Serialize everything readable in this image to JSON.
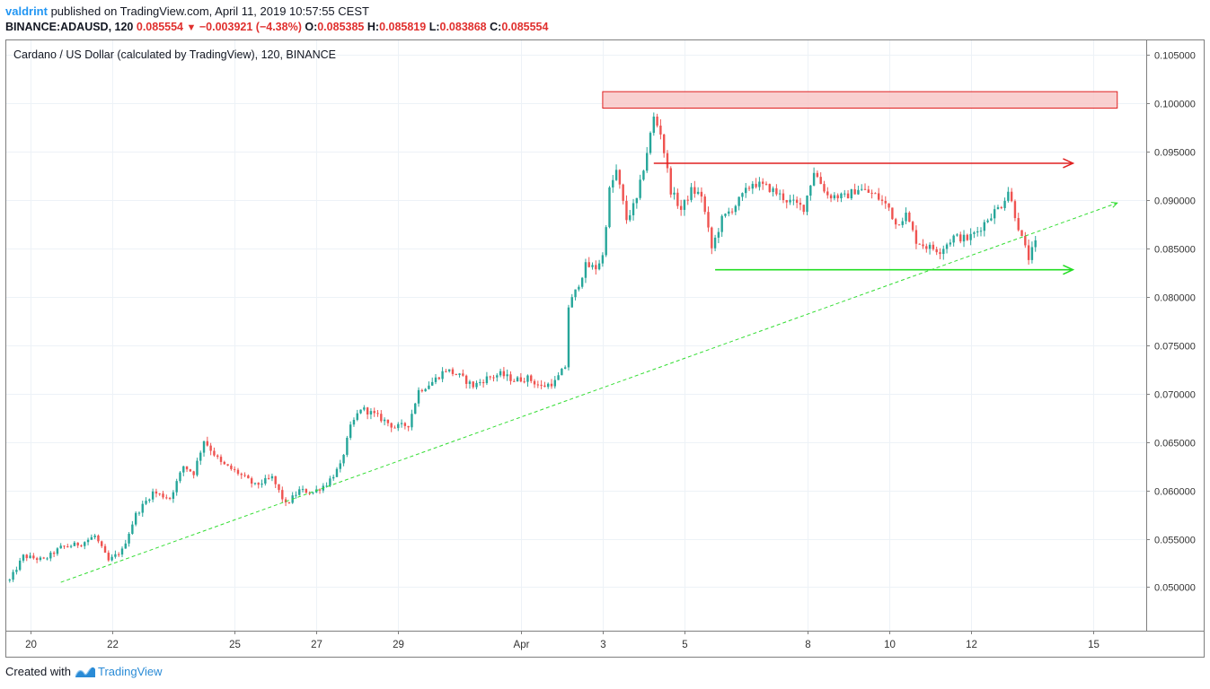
{
  "header": {
    "user": "valdrint",
    "published_text": " published on TradingView.com, April 11, 2019 10:57:55 CEST",
    "symbol": "BINANCE:ADAUSD, 120",
    "last": "0.085554",
    "change": "−0.003921 (−4.38%)",
    "o_label": "O:",
    "o": "0.085385",
    "h_label": "H:",
    "h": "0.085819",
    "l_label": "L:",
    "l": "0.083868",
    "c_label": "C:",
    "c": "0.085554"
  },
  "footer": {
    "created_with": "Created with",
    "brand": "TradingView"
  },
  "colors": {
    "up": "#26a69a",
    "down": "#ef5350",
    "grid": "#edf2f7",
    "resistance_zone": "#f8c8c8",
    "resistance_arrow": "#e02020",
    "support_arrow": "#22dd22",
    "trendline": "#33dd33"
  },
  "chart_data": {
    "type": "candlestick",
    "title": "Cardano / US Dollar (calculated by TradingView), 120, BINANCE",
    "y_ticks": [
      "0.105000",
      "0.100000",
      "0.095000",
      "0.090000",
      "0.085000",
      "0.080000",
      "0.075000",
      "0.070000",
      "0.065000",
      "0.060000",
      "0.055000",
      "0.050000"
    ],
    "ylim": [
      0.0455,
      0.1065
    ],
    "x_ticks": [
      "20",
      "22",
      "25",
      "27",
      "29",
      "Apr",
      "3",
      "5",
      "8",
      "10",
      "12",
      "15"
    ],
    "x_tick_dates": [
      "2019-03-20",
      "2019-03-22",
      "2019-03-25",
      "2019-03-27",
      "2019-03-29",
      "2019-04-01",
      "2019-04-03",
      "2019-04-05",
      "2019-04-08",
      "2019-04-10",
      "2019-04-12",
      "2019-04-15"
    ],
    "xlim": [
      "2019-03-19T10:00",
      "2019-04-16T07:00"
    ],
    "grid": true,
    "price_path": [
      [
        "2019-03-19T12:00",
        0.0507
      ],
      [
        "2019-03-19T20:00",
        0.0532
      ],
      [
        "2019-03-20T08:00",
        0.0528
      ],
      [
        "2019-03-20T18:00",
        0.0541
      ],
      [
        "2019-03-21T06:00",
        0.0545
      ],
      [
        "2019-03-21T14:00",
        0.0553
      ],
      [
        "2019-03-21T22:00",
        0.0527
      ],
      [
        "2019-03-22T06:00",
        0.0538
      ],
      [
        "2019-03-22T14:00",
        0.0575
      ],
      [
        "2019-03-23T00:00",
        0.0598
      ],
      [
        "2019-03-23T10:00",
        0.0592
      ],
      [
        "2019-03-23T18:00",
        0.0625
      ],
      [
        "2019-03-24T00:00",
        0.0618
      ],
      [
        "2019-03-24T06:00",
        0.0652
      ],
      [
        "2019-03-24T16:00",
        0.0628
      ],
      [
        "2019-03-25T02:00",
        0.0618
      ],
      [
        "2019-03-25T12:00",
        0.0605
      ],
      [
        "2019-03-25T22:00",
        0.0613
      ],
      [
        "2019-03-26T06:00",
        0.0585
      ],
      [
        "2019-03-26T14:00",
        0.06
      ],
      [
        "2019-03-26T22:00",
        0.0598
      ],
      [
        "2019-03-27T06:00",
        0.0607
      ],
      [
        "2019-03-27T14:00",
        0.0625
      ],
      [
        "2019-03-27T20:00",
        0.0665
      ],
      [
        "2019-03-28T02:00",
        0.0685
      ],
      [
        "2019-03-28T08:00",
        0.068
      ],
      [
        "2019-03-28T16:00",
        0.0672
      ],
      [
        "2019-03-28T22:00",
        0.0665
      ],
      [
        "2019-03-29T06:00",
        0.0668
      ],
      [
        "2019-03-29T12:00",
        0.0703
      ],
      [
        "2019-03-29T20:00",
        0.0712
      ],
      [
        "2019-03-30T04:00",
        0.0725
      ],
      [
        "2019-03-30T12:00",
        0.0718
      ],
      [
        "2019-03-30T20:00",
        0.0708
      ],
      [
        "2019-03-31T04:00",
        0.0716
      ],
      [
        "2019-03-31T12:00",
        0.072
      ],
      [
        "2019-03-31T20:00",
        0.0714
      ],
      [
        "2019-04-01T04:00",
        0.0716
      ],
      [
        "2019-04-01T12:00",
        0.0707
      ],
      [
        "2019-04-01T20:00",
        0.0712
      ],
      [
        "2019-04-02T02:00",
        0.0728
      ],
      [
        "2019-04-02T04:00",
        0.079
      ],
      [
        "2019-04-02T08:00",
        0.0805
      ],
      [
        "2019-04-02T14:00",
        0.0832
      ],
      [
        "2019-04-02T20:00",
        0.083
      ],
      [
        "2019-04-03T00:00",
        0.0842
      ],
      [
        "2019-04-03T04:00",
        0.091
      ],
      [
        "2019-04-03T08:00",
        0.093
      ],
      [
        "2019-04-03T14:00",
        0.088
      ],
      [
        "2019-04-03T20:00",
        0.09
      ],
      [
        "2019-04-04T02:00",
        0.095
      ],
      [
        "2019-04-04T06:00",
        0.0985
      ],
      [
        "2019-04-04T10:00",
        0.097
      ],
      [
        "2019-04-04T16:00",
        0.091
      ],
      [
        "2019-04-04T22:00",
        0.089
      ],
      [
        "2019-04-05T04:00",
        0.091
      ],
      [
        "2019-04-05T10:00",
        0.0905
      ],
      [
        "2019-04-05T16:00",
        0.085
      ],
      [
        "2019-04-05T22:00",
        0.088
      ],
      [
        "2019-04-06T06:00",
        0.0895
      ],
      [
        "2019-04-06T16:00",
        0.0918
      ],
      [
        "2019-04-07T02:00",
        0.0912
      ],
      [
        "2019-04-07T12:00",
        0.09
      ],
      [
        "2019-04-07T22:00",
        0.0892
      ],
      [
        "2019-04-08T04:00",
        0.093
      ],
      [
        "2019-04-08T12:00",
        0.0905
      ],
      [
        "2019-04-08T22:00",
        0.0903
      ],
      [
        "2019-04-09T06:00",
        0.0912
      ],
      [
        "2019-04-09T16:00",
        0.0905
      ],
      [
        "2019-04-10T00:00",
        0.0892
      ],
      [
        "2019-04-10T04:00",
        0.0875
      ],
      [
        "2019-04-10T10:00",
        0.0885
      ],
      [
        "2019-04-10T16:00",
        0.0858
      ],
      [
        "2019-04-10T22:00",
        0.0852
      ],
      [
        "2019-04-11T06:00",
        0.0848
      ],
      [
        "2019-04-11T14:00",
        0.0862
      ],
      [
        "2019-04-11T22:00",
        0.086
      ],
      [
        "2019-04-12T04:00",
        0.0868
      ],
      [
        "2019-04-12T12:00",
        0.0885
      ],
      [
        "2019-04-12T18:00",
        0.0895
      ],
      [
        "2019-04-12T22:00",
        0.091
      ],
      [
        "2019-04-13T02:00",
        0.0885
      ],
      [
        "2019-04-13T06:00",
        0.086
      ],
      [
        "2019-04-13T10:00",
        0.084
      ],
      [
        "2019-04-13T14:00",
        0.0855
      ]
    ],
    "annotations": {
      "resistance_zone": {
        "from": "2019-04-03T00:00",
        "to": "2019-04-15T14:00",
        "ylow": 0.0995,
        "yhigh": 0.1012
      },
      "resistance_arrow": {
        "from": "2019-04-04T06:00",
        "to": "2019-04-14T12:00",
        "y": 0.0938
      },
      "support_arrow": {
        "from": "2019-04-05T18:00",
        "to": "2019-04-14T12:00",
        "y": 0.0828
      },
      "trendline": [
        [
          "2019-03-20T18:00",
          0.0505
        ],
        [
          "2019-04-15T14:00",
          0.0897
        ]
      ]
    }
  }
}
